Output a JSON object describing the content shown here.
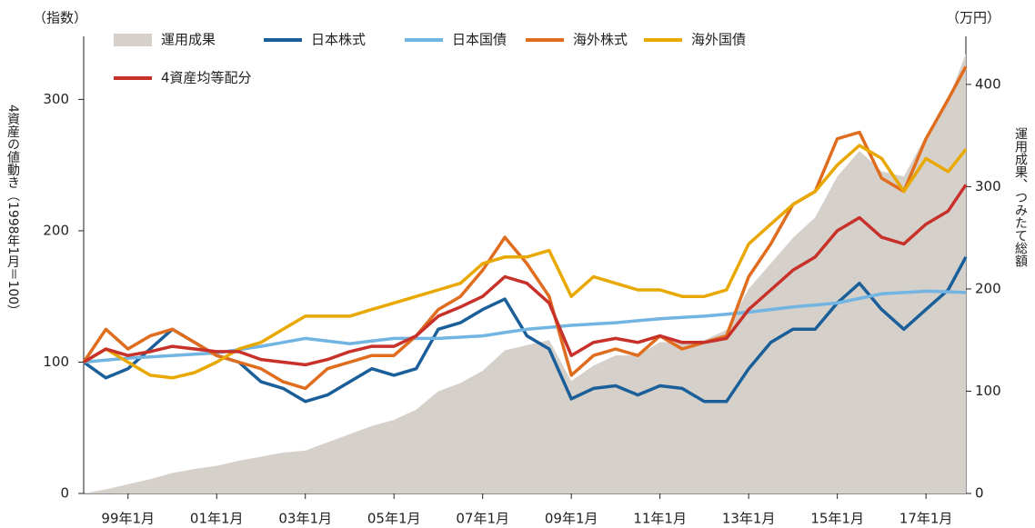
{
  "chart_data": {
    "type": "line",
    "y_unit": "（指数）",
    "y2_unit": "（万円）",
    "ylabel": "4資産の値動き（1998年1月＝100）",
    "y2label": "運用成果、つみたて総額",
    "x": [
      1998,
      1998.5,
      1999,
      1999.5,
      2000,
      2000.5,
      2001,
      2001.5,
      2002,
      2002.5,
      2003,
      2003.5,
      2004,
      2004.5,
      2005,
      2005.5,
      2006,
      2006.5,
      2007,
      2007.5,
      2008,
      2008.5,
      2009,
      2009.5,
      2010,
      2010.5,
      2011,
      2011.5,
      2012,
      2012.5,
      2013,
      2013.5,
      2014,
      2014.5,
      2015,
      2015.5,
      2016,
      2016.5,
      2017,
      2017.5,
      2017.9
    ],
    "xlim": [
      1998,
      2017.9
    ],
    "xticks": [
      {
        "value": 1999,
        "label": "99年1月"
      },
      {
        "value": 2001,
        "label": "01年1月"
      },
      {
        "value": 2003,
        "label": "03年1月"
      },
      {
        "value": 2005,
        "label": "05年1月"
      },
      {
        "value": 2007,
        "label": "07年1月"
      },
      {
        "value": 2009,
        "label": "09年1月"
      },
      {
        "value": 2011,
        "label": "11年1月"
      },
      {
        "value": 2013,
        "label": "13年1月"
      },
      {
        "value": 2015,
        "label": "15年1月"
      },
      {
        "value": 2017,
        "label": "17年1月"
      }
    ],
    "ylim": [
      0,
      348
    ],
    "yticks": [
      0,
      100,
      200,
      300
    ],
    "y2lim": [
      0,
      447
    ],
    "y2ticks": [
      0,
      100,
      200,
      300,
      400
    ],
    "series": [
      {
        "name": "運用成果",
        "type": "area",
        "axis": "y2",
        "color": "#d6d0cb",
        "values": [
          0,
          4,
          9,
          14,
          20,
          24,
          27,
          32,
          36,
          40,
          42,
          50,
          58,
          66,
          72,
          82,
          100,
          108,
          120,
          140,
          145,
          150,
          110,
          125,
          135,
          135,
          148,
          148,
          150,
          160,
          200,
          225,
          250,
          270,
          310,
          335,
          315,
          310,
          350,
          385,
          430
        ]
      },
      {
        "name": "日本株式",
        "color": "#1a5f99",
        "values": [
          100,
          88,
          95,
          110,
          125,
          115,
          105,
          100,
          85,
          80,
          70,
          75,
          85,
          95,
          90,
          95,
          125,
          130,
          140,
          148,
          120,
          110,
          72,
          80,
          82,
          75,
          82,
          80,
          70,
          70,
          95,
          115,
          125,
          125,
          145,
          160,
          140,
          125,
          140,
          155,
          180
        ]
      },
      {
        "name": "日本国債",
        "color": "#72b4e2",
        "values": [
          100,
          101.5,
          103,
          104,
          105,
          106,
          107,
          109.5,
          112,
          115,
          118,
          116,
          114,
          116,
          118,
          118,
          118,
          119,
          120,
          122.5,
          125,
          126.5,
          128,
          129,
          130,
          131.5,
          133,
          134,
          135,
          136.5,
          138,
          140,
          142,
          143.5,
          145,
          148.5,
          152,
          153,
          154,
          153.5,
          153
        ]
      },
      {
        "name": "海外株式",
        "color": "#e06c1e",
        "values": [
          100,
          125,
          110,
          120,
          125,
          115,
          105,
          100,
          95,
          85,
          80,
          95,
          100,
          105,
          105,
          120,
          140,
          150,
          170,
          195,
          175,
          150,
          90,
          105,
          110,
          105,
          120,
          110,
          115,
          120,
          165,
          190,
          220,
          230,
          270,
          275,
          240,
          230,
          270,
          300,
          325
        ]
      },
      {
        "name": "海外国債",
        "color": "#e8a800",
        "values": [
          100,
          110,
          100,
          90,
          88,
          92,
          100,
          110,
          115,
          125,
          135,
          135,
          135,
          140,
          145,
          150,
          155,
          160,
          175,
          180,
          180,
          185,
          150,
          165,
          160,
          155,
          155,
          150,
          150,
          155,
          190,
          205,
          220,
          230,
          250,
          265,
          255,
          230,
          255,
          245,
          262
        ]
      },
      {
        "name": "4資産均等配分",
        "color": "#c8312a",
        "values": [
          100,
          110,
          105,
          108,
          112,
          110,
          108,
          108,
          102,
          100,
          98,
          102,
          108,
          112,
          112,
          120,
          135,
          142,
          150,
          165,
          160,
          145,
          105,
          115,
          118,
          115,
          120,
          115,
          115,
          118,
          140,
          155,
          170,
          180,
          200,
          210,
          195,
          190,
          205,
          215,
          235
        ]
      }
    ]
  }
}
